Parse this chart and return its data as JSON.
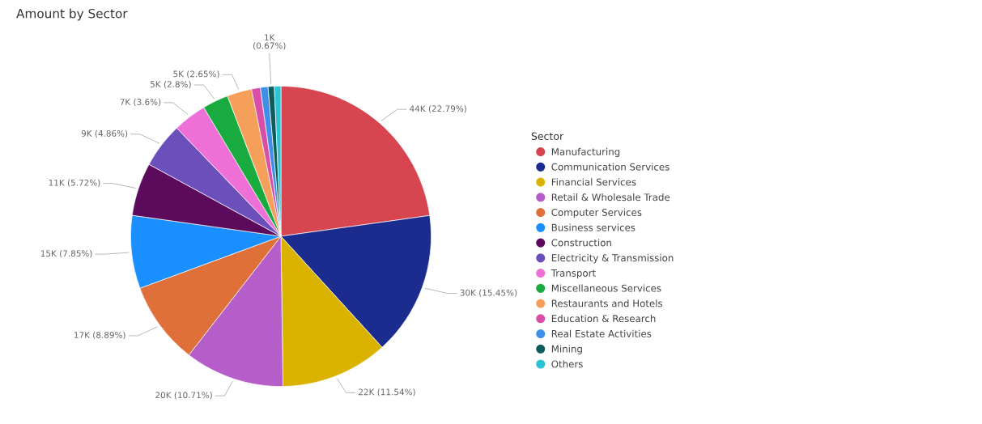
{
  "chart_data": {
    "type": "pie",
    "title": "Amount by Sector",
    "legend_title": "Sector",
    "legend": "right",
    "categories": [
      "Manufacturing",
      "Communication Services",
      "Financial Services",
      "Retail & Wholesale Trade",
      "Computer Services",
      "Business services",
      "Construction",
      "Electricity & Transmission",
      "Transport",
      "Miscellaneous Services",
      "Restaurants and Hotels",
      "Education & Research",
      "Real Estate Activities",
      "Mining",
      "Others"
    ],
    "values": [
      22.79,
      15.45,
      11.54,
      10.71,
      8.89,
      7.85,
      5.72,
      4.86,
      3.6,
      2.8,
      2.65,
      0.95,
      0.82,
      0.67,
      0.7
    ],
    "colors": [
      "#d64550",
      "#1c2b8e",
      "#d9b300",
      "#b55dc9",
      "#e0703a",
      "#1a8fff",
      "#5c0a5c",
      "#6b4fbb",
      "#ee6fd6",
      "#1aab40",
      "#f5a05a",
      "#d94fa8",
      "#3f8fe8",
      "#0f5c5c",
      "#2bc4d4"
    ],
    "value_labels": [
      "44K (22.79%)",
      "30K (15.45%)",
      "22K (11.54%)",
      "20K (10.71%)",
      "17K (8.89%)",
      "15K (7.85%)",
      "11K (5.72%)",
      "9K (4.86%)",
      "7K (3.6%)",
      "5K (2.8%)",
      "5K (2.65%)",
      null,
      null,
      "1K (0.67%)",
      null
    ]
  }
}
